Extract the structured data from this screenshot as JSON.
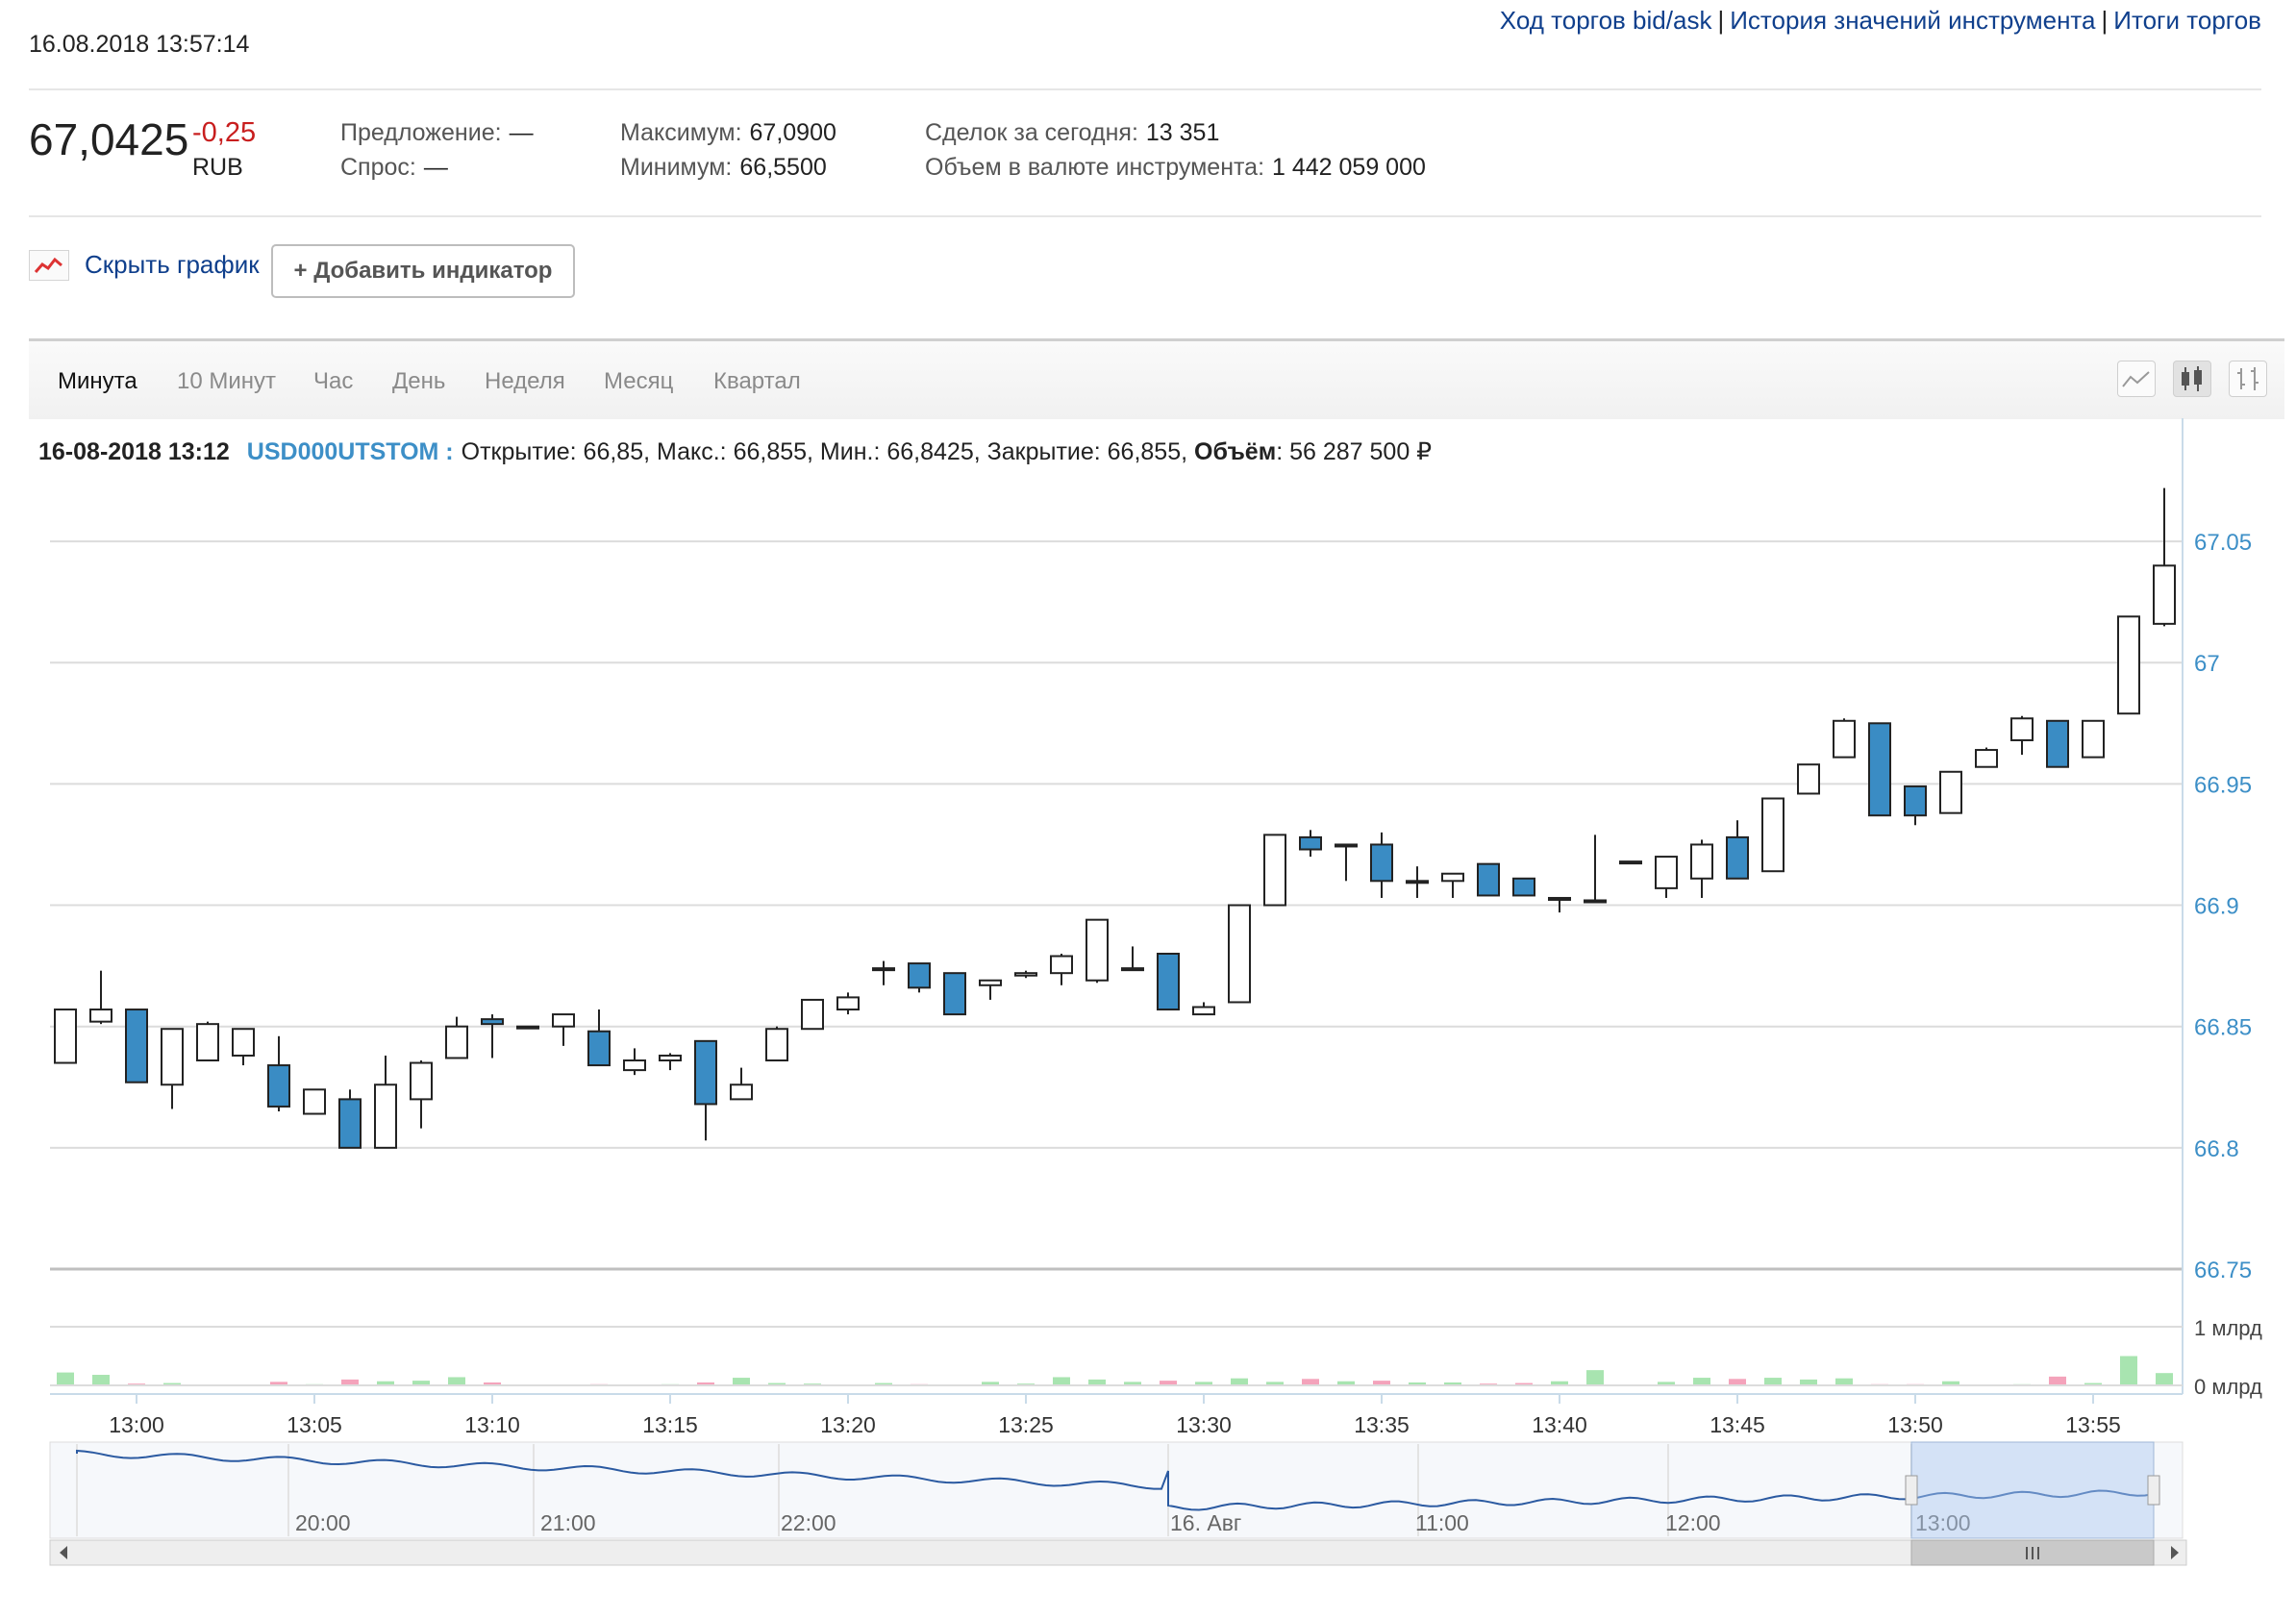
{
  "header": {
    "links": [
      "Ход торгов bid/ask",
      "История значений инструмента",
      "Итоги торгов"
    ],
    "timestamp": "16.08.2018 13:57:14"
  },
  "quote": {
    "price": "67,0425",
    "change": "-0,25",
    "currency": "RUB",
    "offer_label": "Предложение:",
    "offer_value": "—",
    "bid_label": "Спрос:",
    "bid_value": "—",
    "max_label": "Максимум:",
    "max_value": "67,0900",
    "min_label": "Минимум:",
    "min_value": "66,5500",
    "deals_label": "Сделок за сегодня:",
    "deals_value": "13 351",
    "volume_label": "Объем в валюте инструмента:",
    "volume_value": "1 442 059 000"
  },
  "controls": {
    "hide_chart": "Скрыть график",
    "add_indicator": "+ Добавить индикатор"
  },
  "tabs": [
    "Минута",
    "10 Минут",
    "Час",
    "День",
    "Неделя",
    "Месяц",
    "Квартал"
  ],
  "active_tab": "Минута",
  "chart_buttons": [
    "line-chart-icon",
    "candlestick-chart-icon",
    "ohlc-chart-icon"
  ],
  "tooltip": {
    "date": "16-08-2018 13:12",
    "symbol": "USD000UTSTOM :",
    "text": "Открытие: 66,85, Макс.: 66,855, Мин.: 66,8425, Закрытие: 66,855,",
    "volume_label": "Объём",
    "volume_value": ": 56 287 500 ₽"
  },
  "colors": {
    "up_candle": "#ffffff",
    "down_candle": "#3a8cc4",
    "vol_up": "#a8e4b0",
    "vol_down": "#f4a3bb",
    "axis_label": "#3d8fc7",
    "line": "#2b5aa1"
  },
  "chart_data": {
    "type": "candlestick",
    "x_start": "12:58",
    "x_step_minutes": 1,
    "ohlc": [
      [
        66.835,
        66.857,
        66.835,
        66.857
      ],
      [
        66.852,
        66.873,
        66.851,
        66.857
      ],
      [
        66.857,
        66.857,
        66.827,
        66.827
      ],
      [
        66.826,
        66.849,
        66.816,
        66.849
      ],
      [
        66.836,
        66.852,
        66.836,
        66.851
      ],
      [
        66.838,
        66.849,
        66.834,
        66.849
      ],
      [
        66.834,
        66.846,
        66.815,
        66.817
      ],
      [
        66.814,
        66.824,
        66.814,
        66.824
      ],
      [
        66.82,
        66.824,
        66.8,
        66.8
      ],
      [
        66.8,
        66.838,
        66.8,
        66.826
      ],
      [
        66.82,
        66.836,
        66.808,
        66.835
      ],
      [
        66.837,
        66.854,
        66.837,
        66.85
      ],
      [
        66.853,
        66.855,
        66.837,
        66.851
      ],
      [
        66.85,
        66.85,
        66.85,
        66.85
      ],
      [
        66.85,
        66.855,
        66.842,
        66.855
      ],
      [
        66.848,
        66.857,
        66.834,
        66.834
      ],
      [
        66.832,
        66.841,
        66.83,
        66.836
      ],
      [
        66.836,
        66.839,
        66.832,
        66.838
      ],
      [
        66.844,
        66.844,
        66.803,
        66.818
      ],
      [
        66.82,
        66.833,
        66.82,
        66.826
      ],
      [
        66.836,
        66.85,
        66.836,
        66.849
      ],
      [
        66.849,
        66.861,
        66.849,
        66.861
      ],
      [
        66.857,
        66.864,
        66.855,
        66.862
      ],
      [
        66.874,
        66.877,
        66.867,
        66.874
      ],
      [
        66.876,
        66.876,
        66.864,
        66.866
      ],
      [
        66.872,
        66.872,
        66.855,
        66.855
      ],
      [
        66.867,
        66.869,
        66.861,
        66.869
      ],
      [
        66.871,
        66.873,
        66.87,
        66.872
      ],
      [
        66.872,
        66.88,
        66.867,
        66.879
      ],
      [
        66.869,
        66.894,
        66.868,
        66.894
      ],
      [
        66.874,
        66.883,
        66.874,
        66.874
      ],
      [
        66.88,
        66.88,
        66.857,
        66.857
      ],
      [
        66.855,
        66.86,
        66.855,
        66.858
      ],
      [
        66.86,
        66.9,
        66.86,
        66.9
      ],
      [
        66.9,
        66.929,
        66.9,
        66.929
      ],
      [
        66.928,
        66.931,
        66.92,
        66.923
      ],
      [
        66.925,
        66.925,
        66.91,
        66.925
      ],
      [
        66.925,
        66.93,
        66.903,
        66.91
      ],
      [
        66.91,
        66.916,
        66.903,
        66.91
      ],
      [
        66.91,
        66.913,
        66.903,
        66.913
      ],
      [
        66.917,
        66.917,
        66.904,
        66.904
      ],
      [
        66.911,
        66.911,
        66.904,
        66.904
      ],
      [
        66.903,
        66.903,
        66.897,
        66.903
      ],
      [
        66.902,
        66.929,
        66.902,
        66.902
      ],
      [
        66.918,
        66.918,
        66.918,
        66.918
      ],
      [
        66.907,
        66.92,
        66.903,
        66.92
      ],
      [
        66.911,
        66.927,
        66.903,
        66.925
      ],
      [
        66.928,
        66.935,
        66.911,
        66.911
      ],
      [
        66.914,
        66.944,
        66.914,
        66.944
      ],
      [
        66.946,
        66.958,
        66.946,
        66.958
      ],
      [
        66.961,
        66.977,
        66.961,
        66.976
      ],
      [
        66.975,
        66.975,
        66.937,
        66.937
      ],
      [
        66.949,
        66.949,
        66.933,
        66.937
      ],
      [
        66.938,
        66.955,
        66.938,
        66.955
      ],
      [
        66.957,
        66.965,
        66.957,
        66.964
      ],
      [
        66.968,
        66.978,
        66.962,
        66.977
      ],
      [
        66.976,
        66.976,
        66.958,
        66.957
      ],
      [
        66.961,
        66.976,
        66.961,
        66.976
      ],
      [
        66.979,
        67.019,
        66.979,
        67.019
      ],
      [
        67.016,
        67.072,
        67.015,
        67.04
      ]
    ],
    "volume": [
      0.22,
      0.18,
      0.03,
      0.04,
      0.0,
      0.0,
      0.06,
      0.02,
      0.1,
      0.07,
      0.08,
      0.14,
      0.05,
      0.0,
      0.01,
      0.02,
      0.01,
      0.02,
      0.05,
      0.13,
      0.04,
      0.03,
      0.0,
      0.04,
      0.02,
      0.0,
      0.06,
      0.03,
      0.14,
      0.1,
      0.06,
      0.08,
      0.06,
      0.12,
      0.06,
      0.11,
      0.07,
      0.08,
      0.05,
      0.05,
      0.03,
      0.04,
      0.07,
      0.26,
      0.0,
      0.06,
      0.13,
      0.11,
      0.13,
      0.1,
      0.12,
      0.02,
      0.02,
      0.07,
      0.0,
      0.02,
      0.15,
      0.04,
      0.5,
      0.21
    ],
    "y_ticks": [
      "66.75",
      "66.8",
      "66.85",
      "66.9",
      "66.95",
      "67",
      "67.05"
    ],
    "y_range": [
      66.75,
      67.075
    ],
    "volume_ticks": [
      "0 млрд",
      "1 млрд"
    ],
    "x_tick_labels": [
      "13:00",
      "13:05",
      "13:10",
      "13:15",
      "13:20",
      "13:25",
      "13:30",
      "13:35",
      "13:40",
      "13:45",
      "13:50",
      "13:55"
    ],
    "navigator_labels": [
      "20:00",
      "21:00",
      "22:00",
      "16. Авг",
      "11:00",
      "12:00",
      "13:00"
    ]
  }
}
